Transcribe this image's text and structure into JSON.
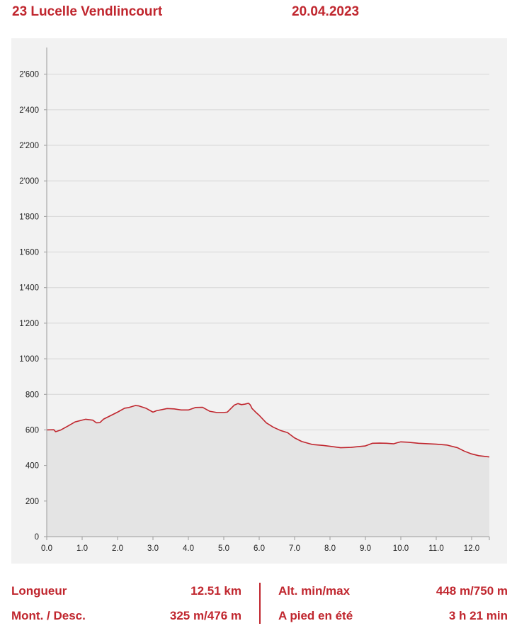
{
  "header": {
    "route_name": "23 Lucelle Vendlincourt",
    "date": "20.04.2023"
  },
  "colors": {
    "accent": "#c0262e",
    "profile_line": "#c0262e",
    "profile_fill": "#e4e4e4",
    "chart_background": "#f2f2f2",
    "grid": "#d6d6d6"
  },
  "chart_data": {
    "type": "area",
    "title": "",
    "xlabel": "",
    "ylabel": "",
    "xlim": [
      0,
      12.5
    ],
    "ylim": [
      0,
      2750
    ],
    "x_ticks": [
      "0.0",
      "1.0",
      "2.0",
      "3.0",
      "4.0",
      "5.0",
      "6.0",
      "7.0",
      "8.0",
      "9.0",
      "10.0",
      "11.0",
      "12.0"
    ],
    "y_ticks": [
      "0",
      "200",
      "400",
      "600",
      "800",
      "1'000",
      "1'200",
      "1'400",
      "1'600",
      "1'800",
      "2'000",
      "2'200",
      "2'400",
      "2'600"
    ],
    "grid": true,
    "series": [
      {
        "x": [
          0.0,
          0.2,
          0.25,
          0.4,
          0.6,
          0.8,
          1.0,
          1.1,
          1.3,
          1.4,
          1.5,
          1.6,
          1.8,
          2.0,
          2.2,
          2.3,
          2.5,
          2.6,
          2.8,
          3.0,
          3.1,
          3.4,
          3.6,
          3.8,
          4.0,
          4.2,
          4.4,
          4.6,
          4.8,
          5.0,
          5.1,
          5.3,
          5.4,
          5.5,
          5.6,
          5.7,
          5.75,
          5.8,
          5.9,
          6.0,
          6.2,
          6.4,
          6.6,
          6.8,
          7.0,
          7.2,
          7.5,
          7.8,
          8.0,
          8.3,
          8.6,
          9.0,
          9.2,
          9.4,
          9.6,
          9.8,
          9.9,
          10.0,
          10.2,
          10.5,
          10.8,
          11.0,
          11.3,
          11.6,
          11.8,
          12.0,
          12.2,
          12.5
        ],
        "y": [
          600,
          601,
          590,
          600,
          622,
          645,
          655,
          660,
          655,
          640,
          641,
          660,
          680,
          700,
          722,
          725,
          737,
          735,
          722,
          700,
          708,
          720,
          718,
          712,
          712,
          726,
          727,
          705,
          698,
          698,
          700,
          740,
          748,
          742,
          745,
          750,
          740,
          720,
          700,
          682,
          640,
          615,
          597,
          585,
          555,
          535,
          518,
          513,
          508,
          500,
          502,
          510,
          525,
          526,
          525,
          522,
          528,
          533,
          531,
          525,
          522,
          520,
          515,
          500,
          480,
          465,
          455,
          448
        ]
      }
    ]
  },
  "stats": {
    "length_label": "Longueur",
    "length_value": "12.51 km",
    "updown_label": "Mont. / Desc.",
    "updown_value": "325 m/476 m",
    "alt_label": "Alt. min/max",
    "alt_value": "448 m/750 m",
    "walk_label": "A pied en été",
    "walk_value": "3 h 21 min"
  }
}
